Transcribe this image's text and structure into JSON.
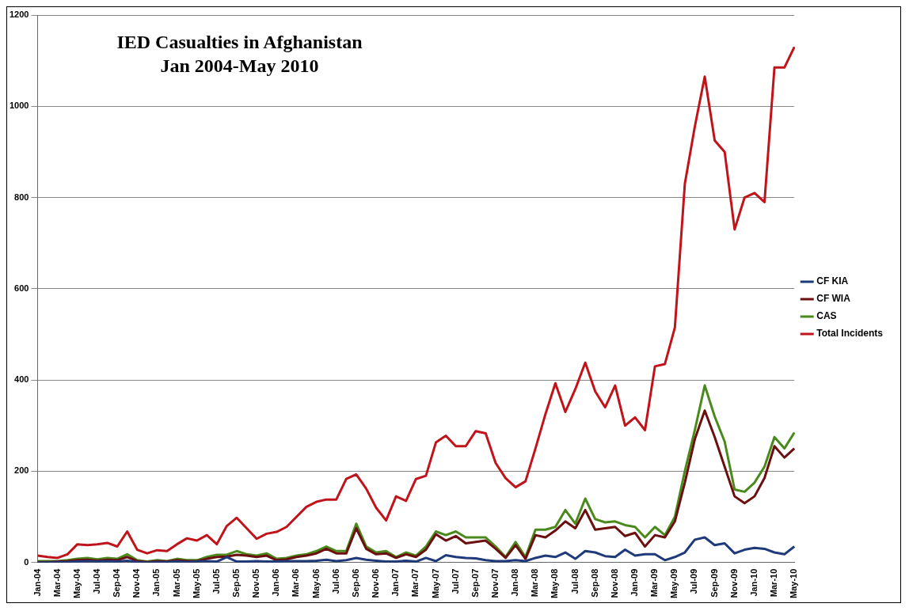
{
  "chart_data": {
    "type": "line",
    "title": "IED Casualties in Afghanistan\nJan 2004-May 2010",
    "categories": [
      "Jan-04",
      null,
      "Mar-04",
      null,
      "May-04",
      null,
      "Jul-04",
      null,
      "Sep-04",
      null,
      "Nov-04",
      null,
      "Jan-05",
      null,
      "Mar-05",
      null,
      "May-05",
      null,
      "Jul-05",
      null,
      "Sep-05",
      null,
      "Nov-05",
      null,
      "Jan-06",
      null,
      "Mar-06",
      null,
      "May-06",
      null,
      "Jul-06",
      null,
      "Sep-06",
      null,
      "Nov-06",
      null,
      "Jan-07",
      null,
      "Mar-07",
      null,
      "May-07",
      null,
      "Jul-07",
      null,
      "Sep-07",
      null,
      "Nov-07",
      null,
      "Jan-08",
      null,
      "Mar-08",
      null,
      "May-08",
      null,
      "Jul-08",
      null,
      "Sep-08",
      null,
      "Nov-08",
      null,
      "Jan-09",
      null,
      "Mar-09",
      null,
      "May-09",
      null,
      "Jul-09",
      null,
      "Sep-09",
      null,
      "Nov-09",
      null,
      "Jan-10",
      null,
      "Mar-10",
      null,
      "May-10"
    ],
    "series": [
      {
        "name": "CF KIA",
        "color": "#1f3a7a",
        "values": [
          0,
          0,
          1,
          1,
          2,
          3,
          2,
          3,
          2,
          4,
          1,
          0,
          1,
          1,
          2,
          1,
          2,
          3,
          2,
          12,
          2,
          2,
          3,
          2,
          2,
          3,
          3,
          3,
          4,
          6,
          3,
          5,
          10,
          6,
          4,
          2,
          2,
          4,
          2,
          10,
          3,
          16,
          12,
          10,
          9,
          5,
          3,
          3,
          5,
          3,
          10,
          15,
          12,
          22,
          8,
          25,
          22,
          14,
          12,
          28,
          15,
          18,
          18,
          5,
          12,
          22,
          50,
          55,
          38,
          42,
          20,
          28,
          32,
          30,
          22,
          18,
          35
        ]
      },
      {
        "name": "CF WIA",
        "color": "#6b0f0f",
        "values": [
          1,
          1,
          2,
          3,
          5,
          6,
          4,
          6,
          5,
          12,
          3,
          1,
          3,
          2,
          5,
          3,
          3,
          8,
          12,
          13,
          17,
          15,
          12,
          15,
          5,
          7,
          12,
          15,
          20,
          30,
          20,
          20,
          75,
          30,
          18,
          20,
          10,
          18,
          12,
          28,
          62,
          48,
          58,
          42,
          45,
          48,
          30,
          10,
          38,
          8,
          60,
          55,
          70,
          90,
          75,
          115,
          72,
          75,
          78,
          58,
          65,
          35,
          60,
          55,
          90,
          175,
          270,
          333,
          275,
          210,
          145,
          130,
          145,
          185,
          255,
          230,
          250
        ]
      },
      {
        "name": "CAS",
        "color": "#4a8a1c",
        "values": [
          3,
          3,
          3,
          5,
          8,
          10,
          7,
          10,
          8,
          18,
          5,
          2,
          5,
          3,
          8,
          5,
          5,
          12,
          17,
          17,
          25,
          18,
          15,
          20,
          8,
          10,
          15,
          18,
          25,
          35,
          25,
          25,
          85,
          35,
          22,
          25,
          12,
          22,
          15,
          35,
          68,
          60,
          68,
          55,
          55,
          55,
          35,
          12,
          45,
          12,
          72,
          72,
          78,
          115,
          85,
          140,
          95,
          88,
          90,
          82,
          78,
          55,
          78,
          60,
          100,
          200,
          290,
          388,
          320,
          265,
          160,
          155,
          175,
          210,
          275,
          250,
          285
        ]
      },
      {
        "name": "Total Incidents",
        "color": "#c0141a",
        "values": [
          15,
          12,
          10,
          18,
          40,
          38,
          40,
          43,
          35,
          68,
          28,
          20,
          27,
          25,
          40,
          53,
          48,
          60,
          40,
          80,
          98,
          75,
          52,
          63,
          67,
          78,
          100,
          122,
          133,
          138,
          138,
          183,
          193,
          162,
          120,
          92,
          145,
          135,
          183,
          190,
          263,
          278,
          255,
          255,
          288,
          283,
          218,
          185,
          165,
          178,
          250,
          325,
          393,
          330,
          380,
          438,
          375,
          340,
          388,
          300,
          318,
          290,
          430,
          435,
          515,
          830,
          955,
          1065,
          925,
          900,
          730,
          800,
          810,
          790,
          1085,
          1085,
          1130
        ]
      }
    ],
    "ylim": [
      0,
      1200
    ],
    "yticks": [
      0,
      200,
      400,
      600,
      800,
      1000,
      1200
    ],
    "grid": "y",
    "legend": "right",
    "marker": "none",
    "line_style": "solid"
  }
}
